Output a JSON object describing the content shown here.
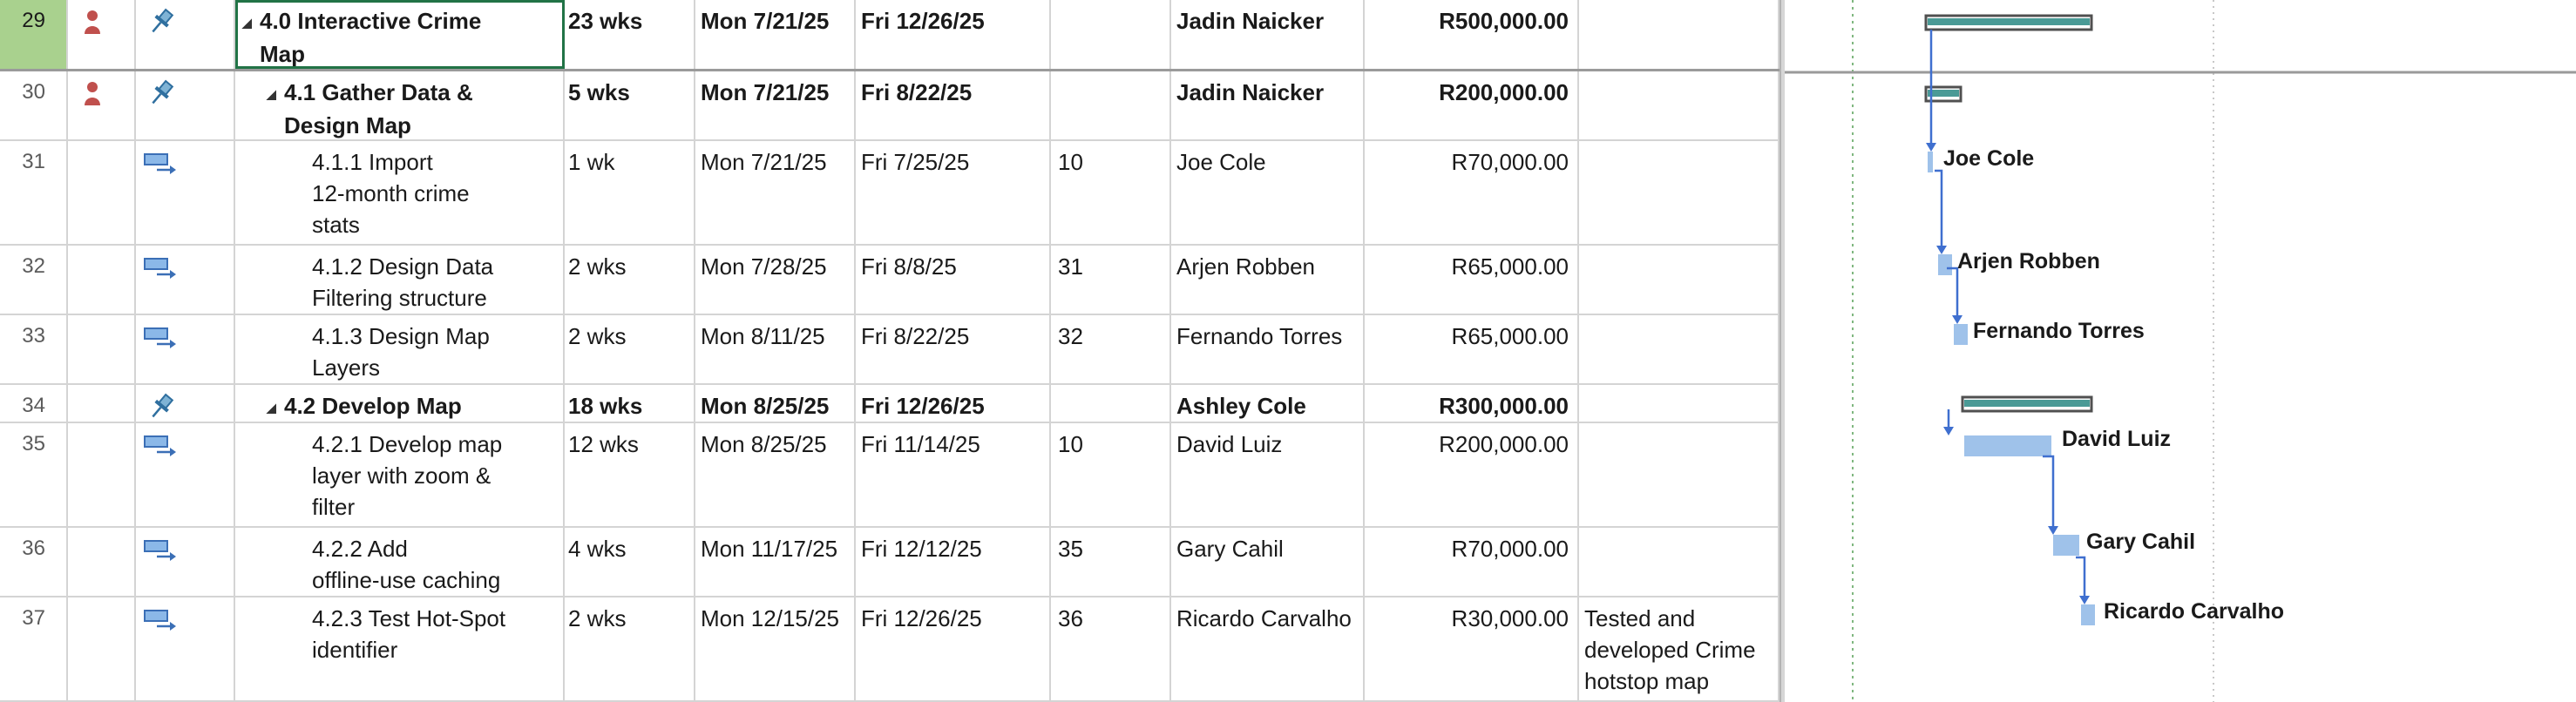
{
  "tasks": [
    {
      "id": "29",
      "name": [
        "4.0 Interactive Crime",
        "Map"
      ],
      "duration": "23 wks",
      "start": "Mon 7/21/25",
      "finish": "Fri 12/26/25",
      "predecessors": "",
      "resource": "Jadin Naicker",
      "cost": "R500,000.00",
      "notes": [],
      "summary": true,
      "level": 0,
      "indicators": [
        "person-icon"
      ],
      "mode_icon": "pin-icon",
      "selected": true
    },
    {
      "id": "30",
      "name": [
        "4.1 Gather Data &",
        "Design Map"
      ],
      "duration": "5 wks",
      "start": "Mon 7/21/25",
      "finish": "Fri 8/22/25",
      "predecessors": "",
      "resource": "Jadin Naicker",
      "cost": "R200,000.00",
      "notes": [],
      "summary": true,
      "level": 1,
      "indicators": [
        "person-icon"
      ],
      "mode_icon": "pin-icon",
      "selected": false
    },
    {
      "id": "31",
      "name": [
        "4.1.1 Import",
        "12-month crime",
        "stats"
      ],
      "duration": "1 wk",
      "start": "Mon 7/21/25",
      "finish": "Fri 7/25/25",
      "predecessors": "10",
      "resource": "Joe Cole",
      "cost": "R70,000.00",
      "notes": [],
      "summary": false,
      "level": 2,
      "indicators": [],
      "mode_icon": "auto-task-icon",
      "selected": false
    },
    {
      "id": "32",
      "name": [
        "4.1.2 Design Data",
        "Filtering structure"
      ],
      "duration": "2 wks",
      "start": "Mon 7/28/25",
      "finish": "Fri 8/8/25",
      "predecessors": "31",
      "resource": "Arjen Robben",
      "cost": "R65,000.00",
      "notes": [],
      "summary": false,
      "level": 2,
      "indicators": [],
      "mode_icon": "auto-task-icon",
      "selected": false
    },
    {
      "id": "33",
      "name": [
        "4.1.3 Design Map",
        "Layers"
      ],
      "duration": "2 wks",
      "start": "Mon 8/11/25",
      "finish": "Fri 8/22/25",
      "predecessors": "32",
      "resource": "Fernando Torres",
      "cost": "R65,000.00",
      "notes": [],
      "summary": false,
      "level": 2,
      "indicators": [],
      "mode_icon": "auto-task-icon",
      "selected": false
    },
    {
      "id": "34",
      "name": [
        "4.2 Develop Map"
      ],
      "duration": "18 wks",
      "start": "Mon 8/25/25",
      "finish": "Fri 12/26/25",
      "predecessors": "",
      "resource": "Ashley Cole",
      "cost": "R300,000.00",
      "notes": [],
      "summary": true,
      "level": 1,
      "indicators": [],
      "mode_icon": "pin-icon",
      "selected": false
    },
    {
      "id": "35",
      "name": [
        "4.2.1 Develop map",
        "layer with zoom &",
        "filter"
      ],
      "duration": "12 wks",
      "start": "Mon 8/25/25",
      "finish": "Fri 11/14/25",
      "predecessors": "10",
      "resource": "David Luiz",
      "cost": "R200,000.00",
      "notes": [],
      "summary": false,
      "level": 2,
      "indicators": [],
      "mode_icon": "auto-task-icon",
      "selected": false
    },
    {
      "id": "36",
      "name": [
        "4.2.2 Add",
        "offline-use caching"
      ],
      "duration": "4 wks",
      "start": "Mon 11/17/25",
      "finish": "Fri 12/12/25",
      "predecessors": "35",
      "resource": "Gary Cahil",
      "cost": "R70,000.00",
      "notes": [],
      "summary": false,
      "level": 2,
      "indicators": [],
      "mode_icon": "auto-task-icon",
      "selected": false
    },
    {
      "id": "37",
      "name": [
        "4.2.3 Test Hot-Spot",
        "identifier"
      ],
      "duration": "2 wks",
      "start": "Mon 12/15/25",
      "finish": "Fri 12/26/25",
      "predecessors": "36",
      "resource": "Ricardo Carvalho",
      "cost": "R30,000.00",
      "notes": [
        "Tested and",
        "developed Crime",
        "hotstop map"
      ],
      "summary": false,
      "level": 2,
      "indicators": [],
      "mode_icon": "auto-task-icon",
      "selected": false
    }
  ],
  "gantt": {
    "summary_bar_color": "#4a9a96",
    "task_bar_color": "#9fc2ea",
    "link_color": "#3f6fcf",
    "bar_labels": [
      "Joe Cole",
      "Arjen Robben",
      "Fernando Torres",
      "David Luiz",
      "Gary Cahil",
      "Ricardo Carvalho"
    ]
  }
}
